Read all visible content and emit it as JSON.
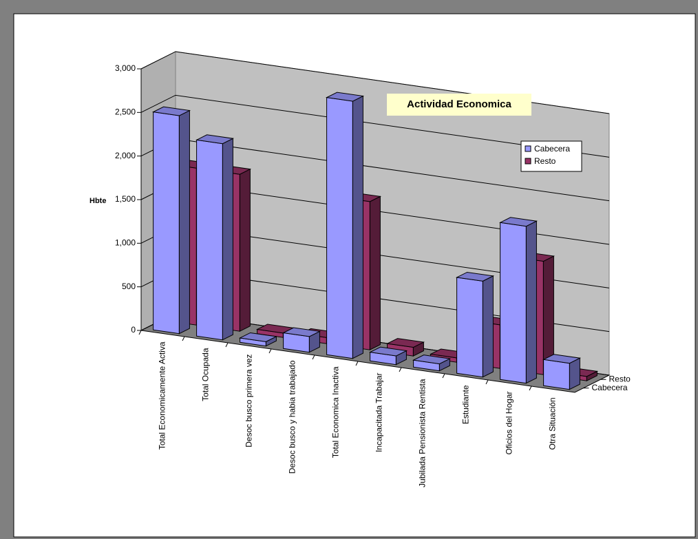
{
  "chart_data": {
    "type": "bar3d",
    "title": "Actividad Economica",
    "y_label": "Hbte",
    "categories": [
      "Total Economicamente Activa",
      "Total Ocupada",
      "Desoc busco primera vez",
      "Desoc busco y habia trabajado",
      "Total Economica Inactiva",
      "Incapacitada Trabajar",
      "Jubilada Pensionista Rentista",
      "Estudiante",
      "Oficios del Hogar",
      "Otra Situación"
    ],
    "series": [
      {
        "name": "Cabecera",
        "color": "#9999ff",
        "values": [
          2500,
          2250,
          50,
          180,
          2950,
          100,
          80,
          1100,
          1800,
          300
        ]
      },
      {
        "name": "Resto",
        "color": "#993366",
        "values": [
          1800,
          1800,
          50,
          70,
          1700,
          100,
          50,
          500,
          1300,
          50
        ]
      }
    ],
    "ylim": [
      0,
      3000
    ],
    "yticks": [
      0,
      500,
      {
        "value": 1000,
        "label": "1,000"
      },
      {
        "value": 1500,
        "label": "1,500"
      },
      {
        "value": 2000,
        "label": "2,000"
      },
      {
        "value": 2500,
        "label": "2,500"
      },
      {
        "value": 3000,
        "label": "3,000"
      }
    ],
    "grid": true
  }
}
